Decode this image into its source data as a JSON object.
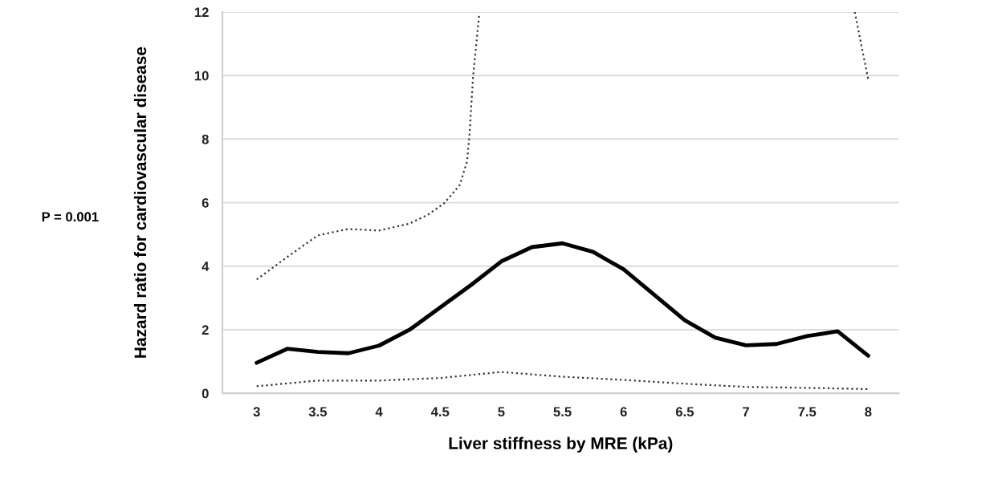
{
  "chart_data": {
    "type": "line",
    "xlabel": "Liver stiffness by MRE (kPa)",
    "ylabel": "Hazard ratio for cardiovascular disease",
    "annotations": [
      "P = 0.001"
    ],
    "xlim": [
      2.72,
      8.25
    ],
    "xticks": [
      3,
      3.5,
      4,
      4.5,
      5,
      5.5,
      6,
      6.5,
      7,
      7.5,
      8
    ],
    "ylim": [
      0,
      12
    ],
    "yticks": [
      0,
      2,
      4,
      6,
      8,
      10,
      12
    ],
    "grid": "y",
    "series": [
      {
        "color": "#000000",
        "line_style": "solid",
        "x": [
          3,
          3.25,
          3.5,
          3.75,
          4,
          4.25,
          4.5,
          4.75,
          5,
          5.25,
          5.5,
          5.75,
          6,
          6.25,
          6.5,
          6.75,
          7,
          7.25,
          7.5,
          7.75,
          8
        ],
        "values": [
          0.96,
          1.4,
          1.3,
          1.26,
          1.5,
          2.0,
          2.7,
          3.4,
          4.15,
          4.6,
          4.72,
          4.45,
          3.9,
          3.1,
          2.3,
          1.75,
          1.51,
          1.55,
          1.8,
          1.95,
          1.18
        ]
      },
      {
        "color": "#333333",
        "line_style": "dotted",
        "x": [
          3,
          3.25,
          3.5,
          3.75,
          4,
          4.25,
          4.4,
          4.53,
          4.66,
          4.72,
          4.74,
          4.77,
          4.82,
          6.3,
          7.89,
          8
        ],
        "values": [
          3.58,
          4.29,
          4.97,
          5.17,
          5.12,
          5.34,
          5.62,
          5.97,
          6.55,
          7.3,
          8.15,
          10.0,
          11.95,
          null,
          12,
          9.88
        ]
      },
      {
        "color": "#333333",
        "line_style": "dotted",
        "x": [
          3,
          3.5,
          4,
          4.5,
          5,
          5.5,
          6,
          6.5,
          7,
          7.5,
          8
        ],
        "values": [
          0.22,
          0.4,
          0.4,
          0.48,
          0.67,
          0.52,
          0.42,
          0.3,
          0.2,
          0.17,
          0.13
        ]
      }
    ]
  }
}
